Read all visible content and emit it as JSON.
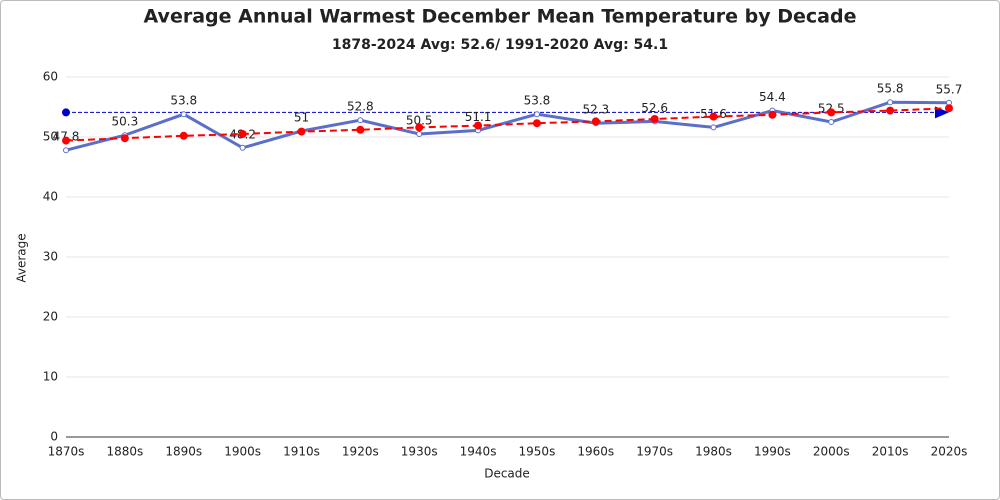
{
  "chart_data": {
    "type": "line",
    "title": "Average Annual Warmest December Mean Temperature by Decade",
    "subtitle": "1878-2024 Avg: 52.6/ 1991-2020 Avg: 54.1",
    "x_label": "Decade",
    "y_label": "Average",
    "categories": [
      "1870s",
      "1880s",
      "1890s",
      "1900s",
      "1910s",
      "1920s",
      "1930s",
      "1940s",
      "1950s",
      "1960s",
      "1970s",
      "1980s",
      "1990s",
      "2000s",
      "2010s",
      "2020s"
    ],
    "series": [
      {
        "color": "#5b6fc8",
        "values": [
          47.8,
          50.3,
          53.8,
          48.2,
          51,
          52.8,
          50.5,
          51.1,
          53.8,
          52.3,
          52.6,
          51.6,
          54.4,
          52.5,
          55.8,
          55.7
        ]
      },
      {
        "color": "#ff0000",
        "dashed": true,
        "values": [
          49.4,
          49.8,
          50.2,
          50.5,
          50.9,
          51.2,
          51.6,
          51.9,
          52.3,
          52.6,
          53.0,
          53.4,
          53.7,
          54.1,
          54.4,
          54.8
        ]
      }
    ],
    "reference_line": {
      "value": 54.1,
      "color": "#0000cc"
    },
    "data_labels_series": 0,
    "ylim": [
      0,
      60
    ],
    "yticks": [
      0,
      10,
      20,
      30,
      40,
      50,
      60
    ],
    "grid": true
  }
}
